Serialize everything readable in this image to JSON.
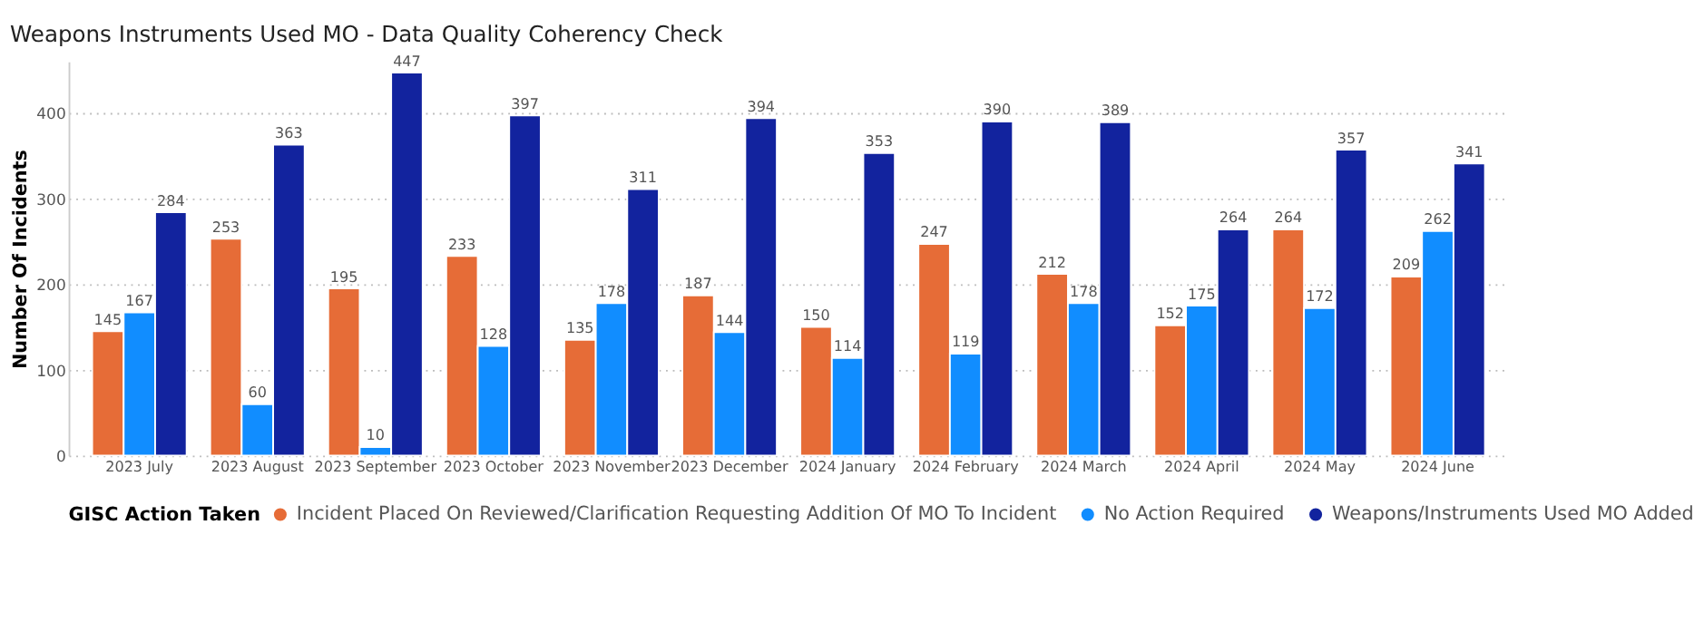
{
  "chart_data": {
    "type": "bar",
    "title": "Weapons Instruments Used MO - Data Quality Coherency Check",
    "categories": [
      "2023 July",
      "2023 August",
      "2023 September",
      "2023 October",
      "2023 November",
      "2023 December",
      "2024 January",
      "2024 February",
      "2024 March",
      "2024 April",
      "2024 May",
      "2024 June"
    ],
    "series": [
      {
        "name": "Incident Placed On Reviewed/Clarification Requesting Addition Of MO To Incident",
        "color": "#e66c37",
        "values": [
          145,
          253,
          195,
          233,
          135,
          187,
          150,
          247,
          212,
          152,
          264,
          209
        ]
      },
      {
        "name": "No Action Required",
        "color": "#118dff",
        "values": [
          167,
          60,
          10,
          128,
          178,
          144,
          114,
          119,
          178,
          175,
          172,
          262
        ]
      },
      {
        "name": "Weapons/Instruments Used MO Added",
        "color": "#12239e",
        "values": [
          284,
          363,
          447,
          397,
          311,
          394,
          353,
          390,
          389,
          264,
          357,
          341
        ]
      }
    ],
    "ylabel": "Number Of Incidents",
    "legend_title": "GISC Action Taken",
    "ylim": [
      0,
      460
    ],
    "yticks": [
      0,
      100,
      200,
      300,
      400
    ],
    "grid": "y",
    "legend": "bottom",
    "data_labels": true
  }
}
